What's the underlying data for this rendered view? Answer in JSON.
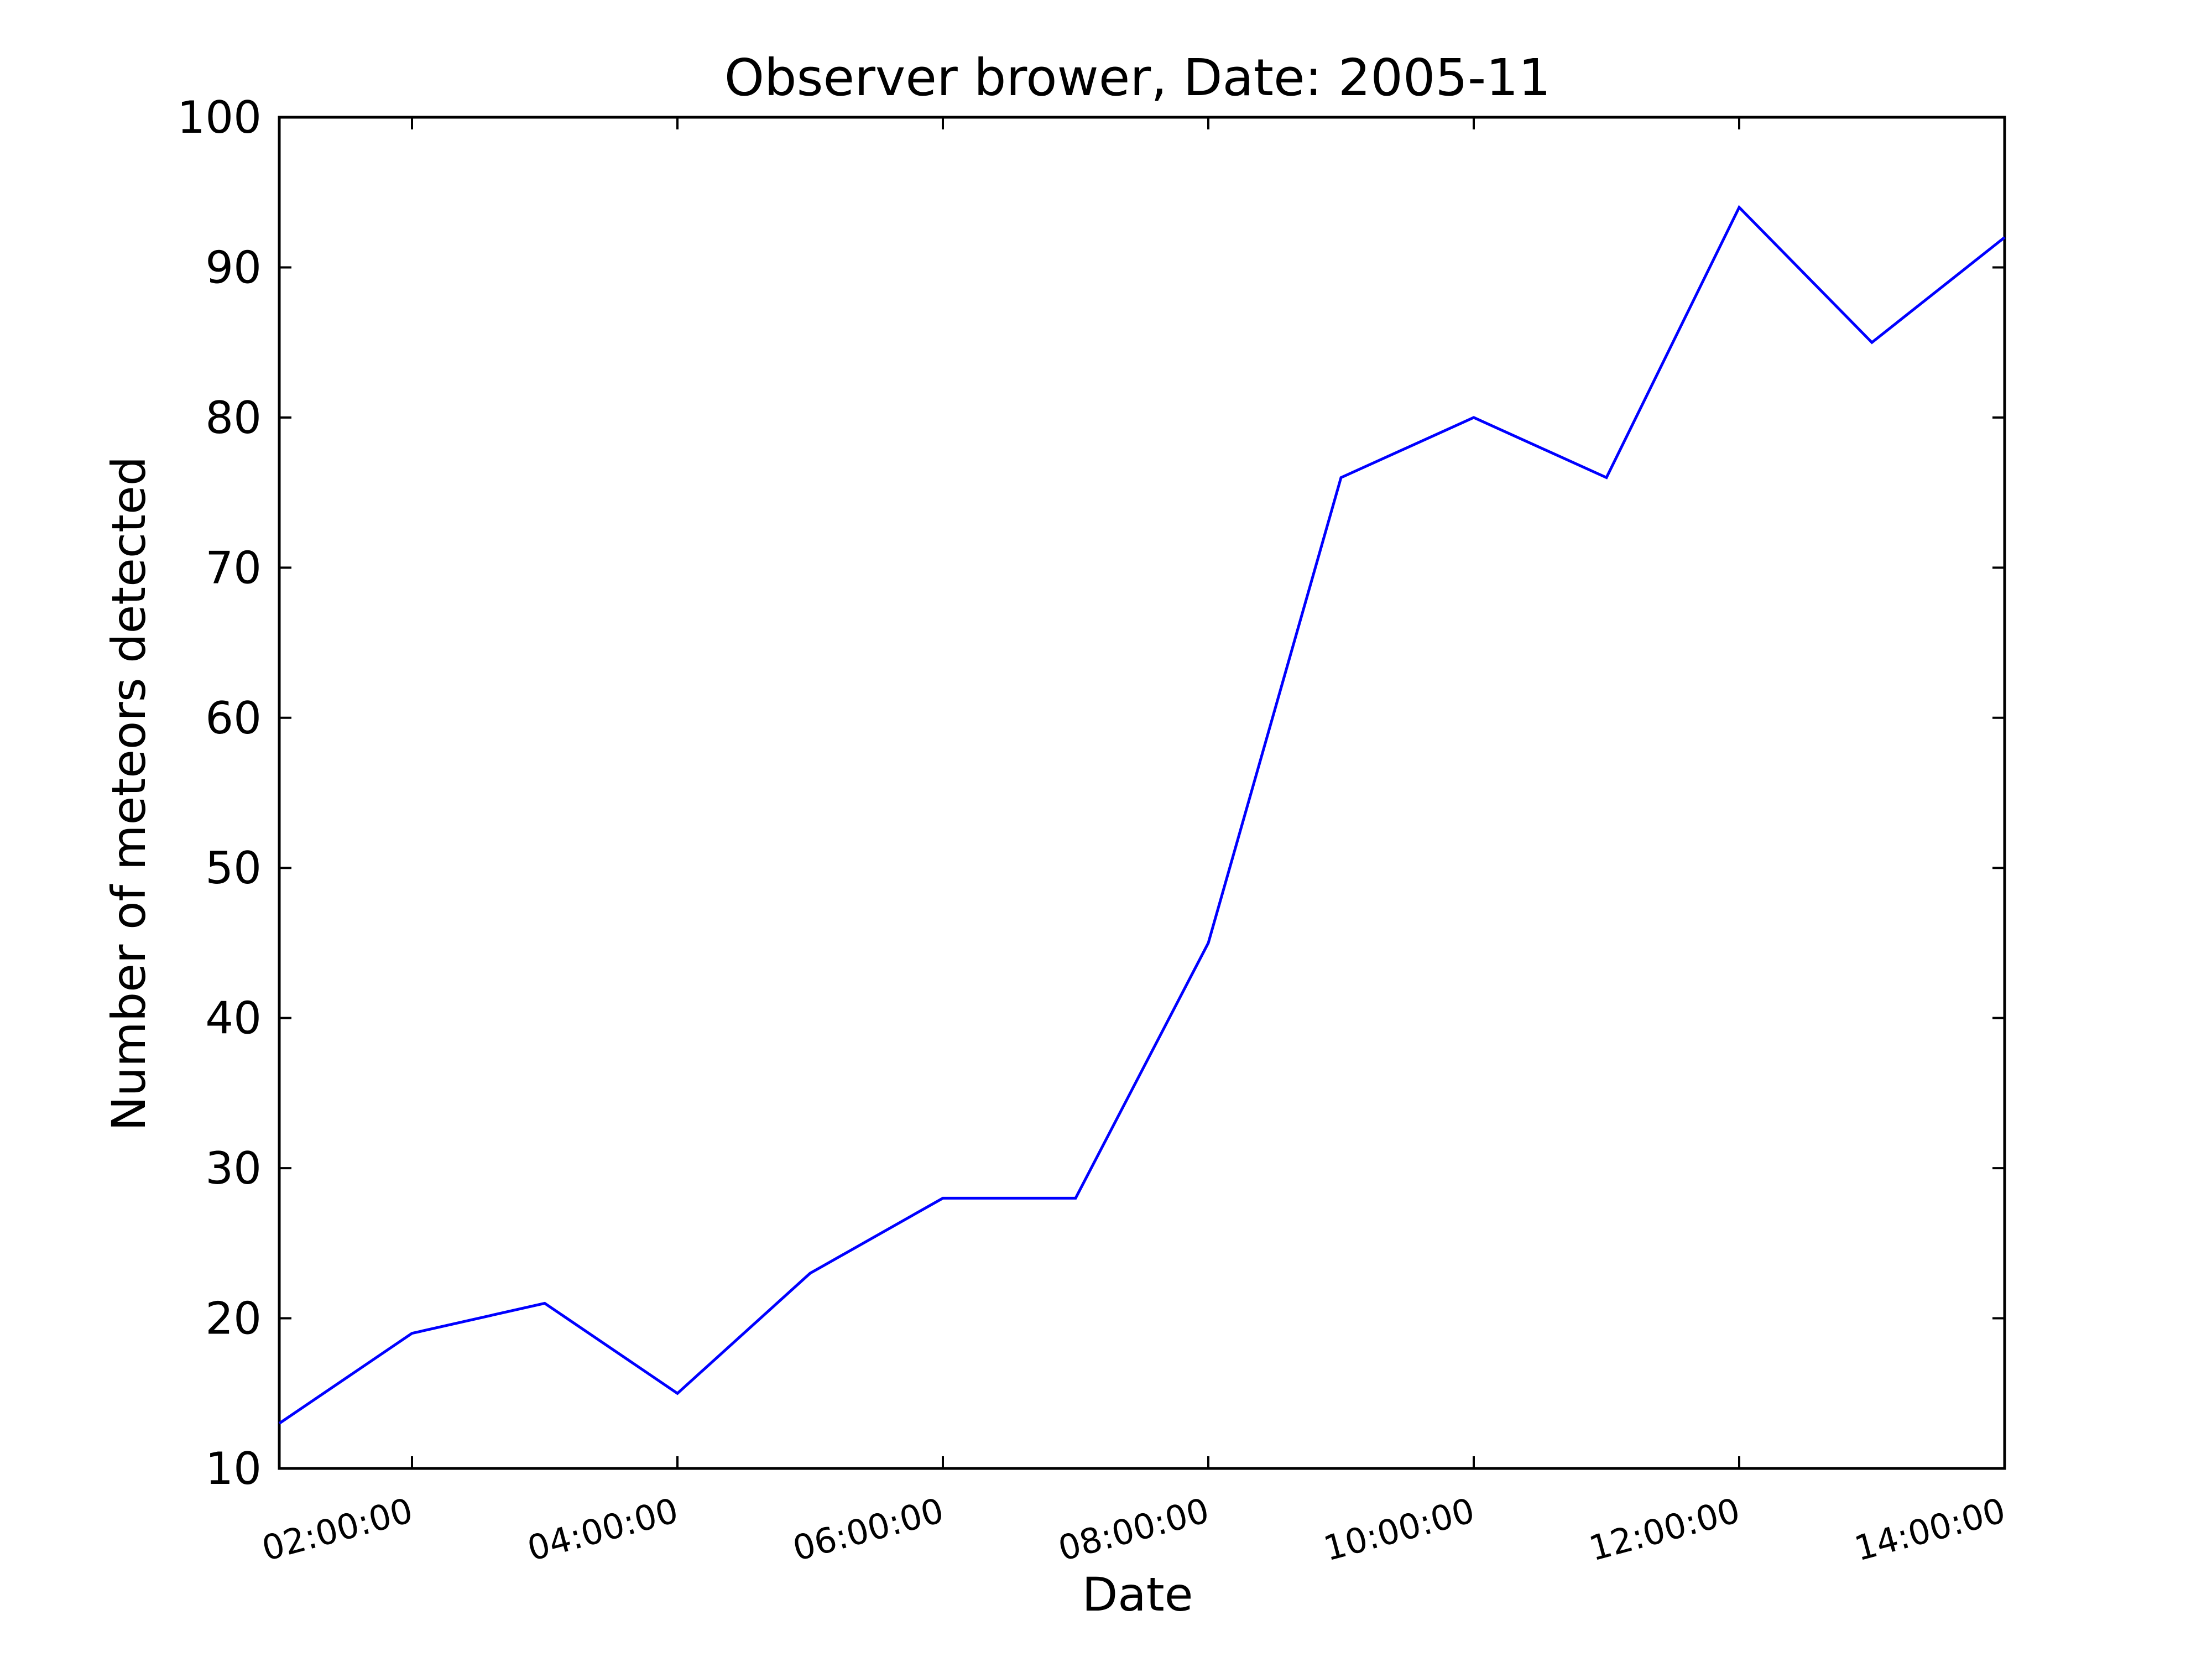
{
  "chart_data": {
    "type": "line",
    "title": "Observer brower, Date: 2005-11",
    "xlabel": "Date",
    "ylabel": "Number of meteors detected",
    "x_tick_labels": [
      "02:00:00",
      "04:00:00",
      "06:00:00",
      "08:00:00",
      "10:00:00",
      "12:00:00",
      "14:00:00"
    ],
    "y_tick_labels": [
      "10",
      "20",
      "30",
      "40",
      "50",
      "60",
      "70",
      "80",
      "90",
      "100"
    ],
    "ylim": [
      10,
      100
    ],
    "xlim": [
      "01:00:00",
      "14:00:00"
    ],
    "grid": false,
    "series": [
      {
        "color": "#0000ff",
        "x": [
          "01:00:00",
          "02:00:00",
          "03:00:00",
          "04:00:00",
          "05:00:00",
          "06:00:00",
          "07:00:00",
          "08:00:00",
          "09:00:00",
          "10:00:00",
          "11:00:00",
          "12:00:00",
          "13:00:00",
          "14:00:00"
        ],
        "values": [
          13,
          19,
          21,
          15,
          23,
          28,
          28,
          45,
          76,
          80,
          76,
          94,
          85,
          92
        ]
      }
    ]
  }
}
